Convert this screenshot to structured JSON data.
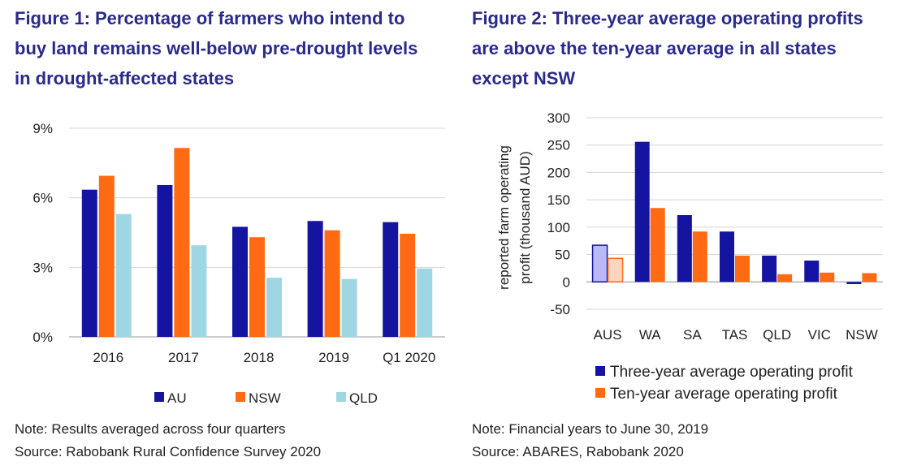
{
  "figure1": {
    "title_lines": [
      "Figure 1: Percentage of farmers who intend to",
      "buy land remains well-below pre-drought levels",
      "in drought-affected states"
    ],
    "note": "Note: Results averaged across four quarters",
    "source": "Source: Rabobank Rural Confidence Survey 2020"
  },
  "figure2": {
    "title_lines": [
      "Figure 2: Three-year average operating profits",
      "are above the ten-year average in all states",
      "except NSW"
    ],
    "note": "Note: Financial years to June 30, 2019",
    "source": "Source: ABARES, Rabobank 2020"
  },
  "chart_data": [
    {
      "type": "bar",
      "categories": [
        "2016",
        "2017",
        "2018",
        "2019",
        "Q1 2020"
      ],
      "series": [
        {
          "name": "AU",
          "color": "#1414a0",
          "values": [
            6.35,
            6.55,
            4.75,
            5.0,
            4.95
          ]
        },
        {
          "name": "NSW",
          "color": "#ff6a13",
          "values": [
            6.95,
            8.15,
            4.3,
            4.6,
            4.45
          ]
        },
        {
          "name": "QLD",
          "color": "#9fd6e3",
          "values": [
            5.3,
            3.95,
            2.55,
            2.5,
            2.95
          ]
        }
      ],
      "ylim": [
        0,
        9
      ],
      "yticks": [
        "0%",
        "3%",
        "6%",
        "9%"
      ],
      "grid": true,
      "legend": "bottom"
    },
    {
      "type": "bar",
      "categories": [
        "AUS",
        "WA",
        "SA",
        "TAS",
        "QLD",
        "VIC",
        "NSW"
      ],
      "series": [
        {
          "name": "Three-year average operating profit",
          "color": "#1414a0",
          "highlight_color": "#b9b9f5",
          "values": [
            67,
            256,
            122,
            92,
            48,
            39,
            -4
          ]
        },
        {
          "name": "Ten-year average operating profit",
          "color": "#ff6a13",
          "highlight_color": "#fcd5be",
          "values": [
            43,
            135,
            92,
            48,
            14,
            17,
            16
          ]
        }
      ],
      "highlight_category": "AUS",
      "ylabel_lines": [
        "reported farm operating",
        "profit (thousand AUD)"
      ],
      "ylim": [
        -50,
        300
      ],
      "yticks": [
        "-50",
        "0",
        "50",
        "100",
        "150",
        "200",
        "250",
        "300"
      ],
      "grid": true,
      "legend": "bottom-right"
    }
  ]
}
